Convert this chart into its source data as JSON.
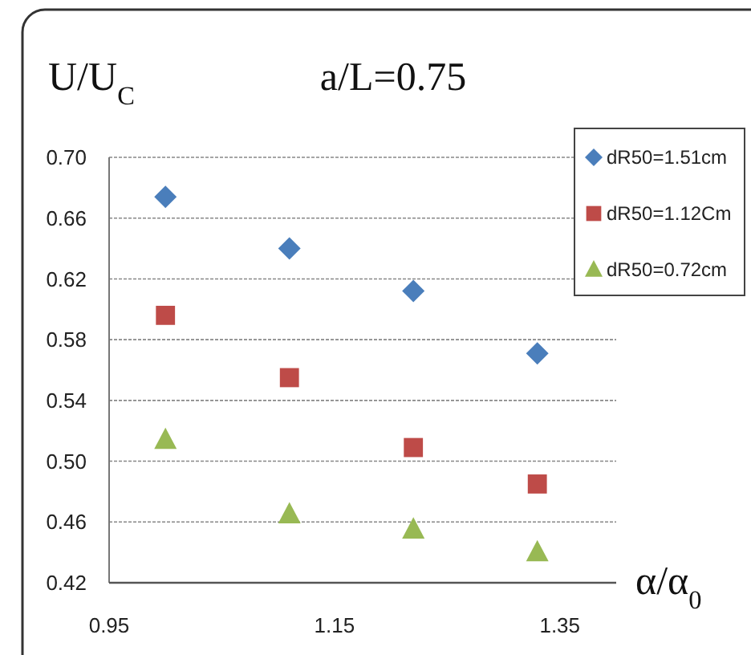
{
  "chart_data": {
    "type": "scatter",
    "title": "a/L=0.75",
    "ylabel": "U/U$_{C}$",
    "xlabel": "α/α$_{0}$",
    "x": [
      1.0,
      1.11,
      1.22,
      1.33
    ],
    "series": [
      {
        "name": "dR50=1.51cm",
        "color": "#4a7ebb",
        "marker": "diamond",
        "values": [
          0.674,
          0.64,
          0.612,
          0.571
        ]
      },
      {
        "name": "dR50=1.12Cm",
        "color": "#be4b48",
        "marker": "square",
        "values": [
          0.596,
          0.555,
          0.509,
          0.485
        ]
      },
      {
        "name": "dR50=0.72cm",
        "color": "#98b954",
        "marker": "triangle",
        "values": [
          0.514,
          0.465,
          0.455,
          0.44
        ]
      }
    ],
    "xlim": [
      0.95,
      1.4
    ],
    "xticks": [
      0.95,
      1.15,
      1.35
    ],
    "ylim": [
      0.42,
      0.7
    ],
    "yticks": [
      {
        "value": 0.42,
        "label": "0.42"
      },
      {
        "value": 0.46,
        "label": "0.46"
      },
      {
        "value": 0.5,
        "label": "0.50"
      },
      {
        "value": 0.54,
        "label": "0.54"
      },
      {
        "value": 0.58,
        "label": "0.58"
      },
      {
        "value": 0.62,
        "label": "0.62"
      },
      {
        "value": 0.66,
        "label": "0.66"
      },
      {
        "value": 0.7,
        "label": "0.70"
      }
    ],
    "grid": "y",
    "legend": "top right"
  }
}
